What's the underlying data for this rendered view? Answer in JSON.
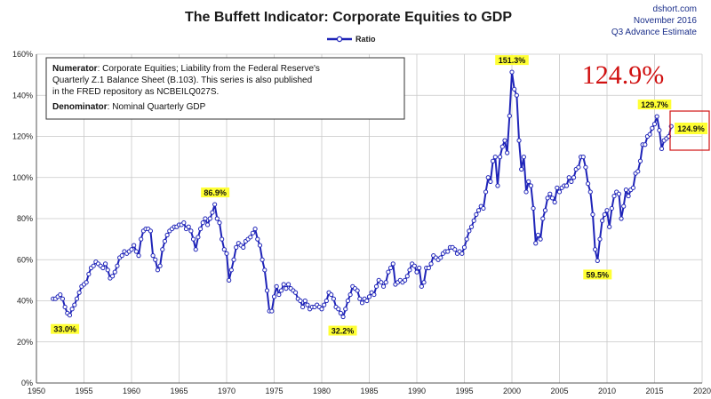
{
  "chart_data": {
    "type": "line",
    "title": "The Buffett Indicator: Corporate Equities to GDP",
    "source": "dshort.com",
    "date_text": "November 2016",
    "estimate_text": "Q3 Advance Estimate",
    "legend": [
      "Ratio"
    ],
    "legend_placement": "top-center",
    "grid": true,
    "line_color": "#1f24b8",
    "highlight_color": "#d01010",
    "xlim": [
      1950,
      2020
    ],
    "ylim": [
      0,
      160
    ],
    "x_ticks": [
      "1950",
      "1955",
      "1960",
      "1965",
      "1970",
      "1975",
      "1980",
      "1985",
      "1990",
      "1995",
      "2000",
      "2005",
      "2010",
      "2015",
      "2020"
    ],
    "y_ticks": [
      "0%",
      "20%",
      "40%",
      "60%",
      "80%",
      "100%",
      "120%",
      "140%",
      "160%"
    ],
    "note": {
      "numerator_label": "Numerator",
      "numerator_lines": [
        ": Corporate Equities; Liability from the Federal Reserve's",
        "Quarterly Z.1 Balance Sheet (B.103). This series is also published",
        "in the FRED repository  as NCBEILQ027S."
      ],
      "denominator_label": "Denominator",
      "denominator_text": ": Nominal Quarterly GDP"
    },
    "current_value_text": "124.9%",
    "current_value_callout": "124.9%",
    "annotations": [
      {
        "label": "33.0%",
        "x": 1953.0,
        "y": 33.0
      },
      {
        "label": "86.9%",
        "x": 1968.8,
        "y": 86.9
      },
      {
        "label": "32.2%",
        "x": 1982.2,
        "y": 32.2
      },
      {
        "label": "151.3%",
        "x": 2000.0,
        "y": 151.3
      },
      {
        "label": "59.5%",
        "x": 2009.0,
        "y": 59.5
      },
      {
        "label": "129.7%",
        "x": 2015.0,
        "y": 129.7
      }
    ],
    "series": [
      {
        "name": "Ratio",
        "points": [
          [
            1951.75,
            41
          ],
          [
            1952.0,
            41
          ],
          [
            1952.25,
            42
          ],
          [
            1952.5,
            43
          ],
          [
            1952.75,
            41
          ],
          [
            1953.0,
            37
          ],
          [
            1953.25,
            34
          ],
          [
            1953.5,
            33
          ],
          [
            1953.75,
            36
          ],
          [
            1954.0,
            38
          ],
          [
            1954.25,
            41
          ],
          [
            1954.5,
            44
          ],
          [
            1954.75,
            47
          ],
          [
            1955.0,
            48
          ],
          [
            1955.25,
            49
          ],
          [
            1955.5,
            53
          ],
          [
            1955.75,
            56
          ],
          [
            1956.0,
            57
          ],
          [
            1956.25,
            59
          ],
          [
            1956.5,
            58
          ],
          [
            1956.75,
            57
          ],
          [
            1957.0,
            56
          ],
          [
            1957.25,
            58
          ],
          [
            1957.5,
            55
          ],
          [
            1957.75,
            51
          ],
          [
            1958.0,
            52
          ],
          [
            1958.25,
            54
          ],
          [
            1958.5,
            57
          ],
          [
            1958.75,
            61
          ],
          [
            1959.0,
            62
          ],
          [
            1959.25,
            64
          ],
          [
            1959.5,
            63
          ],
          [
            1959.75,
            64
          ],
          [
            1960.0,
            65
          ],
          [
            1960.25,
            67
          ],
          [
            1960.5,
            64
          ],
          [
            1960.75,
            62
          ],
          [
            1961.0,
            70
          ],
          [
            1961.25,
            74
          ],
          [
            1961.5,
            75
          ],
          [
            1961.75,
            75
          ],
          [
            1962.0,
            74
          ],
          [
            1962.25,
            62
          ],
          [
            1962.5,
            60
          ],
          [
            1962.75,
            55
          ],
          [
            1963.0,
            57
          ],
          [
            1963.25,
            65
          ],
          [
            1963.5,
            69
          ],
          [
            1963.75,
            72
          ],
          [
            1964.0,
            74
          ],
          [
            1964.25,
            75
          ],
          [
            1964.5,
            76
          ],
          [
            1964.75,
            76
          ],
          [
            1965.0,
            77
          ],
          [
            1965.25,
            77
          ],
          [
            1965.5,
            78
          ],
          [
            1965.75,
            75
          ],
          [
            1966.0,
            76
          ],
          [
            1966.25,
            74
          ],
          [
            1966.5,
            70
          ],
          [
            1966.75,
            65
          ],
          [
            1967.0,
            71
          ],
          [
            1967.25,
            75
          ],
          [
            1967.5,
            78
          ],
          [
            1967.75,
            80
          ],
          [
            1968.0,
            77
          ],
          [
            1968.25,
            80
          ],
          [
            1968.5,
            83
          ],
          [
            1968.75,
            86.9
          ],
          [
            1969.0,
            80
          ],
          [
            1969.25,
            78
          ],
          [
            1969.5,
            70
          ],
          [
            1969.75,
            65
          ],
          [
            1970.0,
            63
          ],
          [
            1970.25,
            50
          ],
          [
            1970.5,
            55
          ],
          [
            1970.75,
            60
          ],
          [
            1971.0,
            66
          ],
          [
            1971.25,
            68
          ],
          [
            1971.5,
            67
          ],
          [
            1971.75,
            66
          ],
          [
            1972.0,
            69
          ],
          [
            1972.25,
            70
          ],
          [
            1972.5,
            71
          ],
          [
            1972.75,
            73
          ],
          [
            1973.0,
            75
          ],
          [
            1973.25,
            70
          ],
          [
            1973.5,
            67
          ],
          [
            1973.75,
            60
          ],
          [
            1974.0,
            55
          ],
          [
            1974.25,
            45
          ],
          [
            1974.5,
            35
          ],
          [
            1974.75,
            35
          ],
          [
            1975.0,
            42
          ],
          [
            1975.25,
            47
          ],
          [
            1975.5,
            43
          ],
          [
            1975.75,
            45
          ],
          [
            1976.0,
            48
          ],
          [
            1976.25,
            46
          ],
          [
            1976.5,
            48
          ],
          [
            1976.75,
            46
          ],
          [
            1977.0,
            45
          ],
          [
            1977.25,
            44
          ],
          [
            1977.5,
            41
          ],
          [
            1977.75,
            40
          ],
          [
            1978.0,
            37
          ],
          [
            1978.25,
            40
          ],
          [
            1978.5,
            38
          ],
          [
            1978.75,
            36
          ],
          [
            1979.0,
            37
          ],
          [
            1979.25,
            37
          ],
          [
            1979.5,
            38
          ],
          [
            1979.75,
            37
          ],
          [
            1980.0,
            36
          ],
          [
            1980.25,
            38
          ],
          [
            1980.5,
            40
          ],
          [
            1980.75,
            44
          ],
          [
            1981.0,
            43
          ],
          [
            1981.25,
            41
          ],
          [
            1981.5,
            37
          ],
          [
            1981.75,
            36
          ],
          [
            1982.0,
            34
          ],
          [
            1982.25,
            32.2
          ],
          [
            1982.5,
            36
          ],
          [
            1982.75,
            40
          ],
          [
            1983.0,
            43
          ],
          [
            1983.25,
            47
          ],
          [
            1983.5,
            46
          ],
          [
            1983.75,
            45
          ],
          [
            1984.0,
            41
          ],
          [
            1984.25,
            39
          ],
          [
            1984.5,
            41
          ],
          [
            1984.75,
            40
          ],
          [
            1985.0,
            42
          ],
          [
            1985.25,
            44
          ],
          [
            1985.5,
            43
          ],
          [
            1985.75,
            47
          ],
          [
            1986.0,
            50
          ],
          [
            1986.25,
            49
          ],
          [
            1986.5,
            47
          ],
          [
            1986.75,
            49
          ],
          [
            1987.0,
            54
          ],
          [
            1987.25,
            56
          ],
          [
            1987.5,
            58
          ],
          [
            1987.75,
            48
          ],
          [
            1988.0,
            49
          ],
          [
            1988.25,
            50
          ],
          [
            1988.5,
            49
          ],
          [
            1988.75,
            50
          ],
          [
            1989.0,
            52
          ],
          [
            1989.25,
            55
          ],
          [
            1989.5,
            58
          ],
          [
            1989.75,
            57
          ],
          [
            1990.0,
            54
          ],
          [
            1990.25,
            56
          ],
          [
            1990.5,
            47
          ],
          [
            1990.75,
            49
          ],
          [
            1991.0,
            56
          ],
          [
            1991.25,
            56
          ],
          [
            1991.5,
            58
          ],
          [
            1991.75,
            62
          ],
          [
            1992.0,
            61
          ],
          [
            1992.25,
            60
          ],
          [
            1992.5,
            61
          ],
          [
            1992.75,
            63
          ],
          [
            1993.0,
            64
          ],
          [
            1993.25,
            64
          ],
          [
            1993.5,
            66
          ],
          [
            1993.75,
            66
          ],
          [
            1994.0,
            65
          ],
          [
            1994.25,
            63
          ],
          [
            1994.5,
            64
          ],
          [
            1994.75,
            63
          ],
          [
            1995.0,
            66
          ],
          [
            1995.25,
            70
          ],
          [
            1995.5,
            74
          ],
          [
            1995.75,
            76
          ],
          [
            1996.0,
            79
          ],
          [
            1996.25,
            82
          ],
          [
            1996.5,
            84
          ],
          [
            1996.75,
            86
          ],
          [
            1997.0,
            85
          ],
          [
            1997.25,
            93
          ],
          [
            1997.5,
            100
          ],
          [
            1997.75,
            98
          ],
          [
            1998.0,
            108
          ],
          [
            1998.25,
            110
          ],
          [
            1998.5,
            96
          ],
          [
            1998.75,
            110
          ],
          [
            1999.0,
            115
          ],
          [
            1999.25,
            118
          ],
          [
            1999.5,
            112
          ],
          [
            1999.75,
            130
          ],
          [
            2000.0,
            151.3
          ],
          [
            2000.25,
            143
          ],
          [
            2000.5,
            140
          ],
          [
            2000.75,
            118
          ],
          [
            2001.0,
            104
          ],
          [
            2001.25,
            110
          ],
          [
            2001.5,
            93
          ],
          [
            2001.75,
            98
          ],
          [
            2002.0,
            96
          ],
          [
            2002.25,
            85
          ],
          [
            2002.5,
            68
          ],
          [
            2002.75,
            72
          ],
          [
            2003.0,
            70
          ],
          [
            2003.25,
            80
          ],
          [
            2003.5,
            84
          ],
          [
            2003.75,
            90
          ],
          [
            2004.0,
            92
          ],
          [
            2004.25,
            90
          ],
          [
            2004.5,
            88
          ],
          [
            2004.75,
            95
          ],
          [
            2005.0,
            93
          ],
          [
            2005.25,
            95
          ],
          [
            2005.5,
            96
          ],
          [
            2005.75,
            96
          ],
          [
            2006.0,
            100
          ],
          [
            2006.25,
            98
          ],
          [
            2006.5,
            100
          ],
          [
            2006.75,
            104
          ],
          [
            2007.0,
            105
          ],
          [
            2007.25,
            110
          ],
          [
            2007.5,
            110
          ],
          [
            2007.75,
            105
          ],
          [
            2008.0,
            97
          ],
          [
            2008.25,
            93
          ],
          [
            2008.5,
            82
          ],
          [
            2008.75,
            65
          ],
          [
            2009.0,
            59.5
          ],
          [
            2009.25,
            70
          ],
          [
            2009.5,
            79
          ],
          [
            2009.75,
            82
          ],
          [
            2010.0,
            84
          ],
          [
            2010.25,
            76
          ],
          [
            2010.5,
            85
          ],
          [
            2010.75,
            91
          ],
          [
            2011.0,
            93
          ],
          [
            2011.25,
            92
          ],
          [
            2011.5,
            80
          ],
          [
            2011.75,
            86
          ],
          [
            2012.0,
            94
          ],
          [
            2012.25,
            91
          ],
          [
            2012.5,
            94
          ],
          [
            2012.75,
            95
          ],
          [
            2013.0,
            102
          ],
          [
            2013.25,
            103
          ],
          [
            2013.5,
            108
          ],
          [
            2013.75,
            116
          ],
          [
            2014.0,
            116
          ],
          [
            2014.25,
            120
          ],
          [
            2014.5,
            121
          ],
          [
            2014.75,
            124
          ],
          [
            2015.0,
            126
          ],
          [
            2015.25,
            129.7
          ],
          [
            2015.5,
            123
          ],
          [
            2015.75,
            114
          ],
          [
            2016.0,
            118
          ],
          [
            2016.25,
            119
          ],
          [
            2016.5,
            120
          ],
          [
            2016.75,
            124.9
          ]
        ]
      }
    ]
  }
}
